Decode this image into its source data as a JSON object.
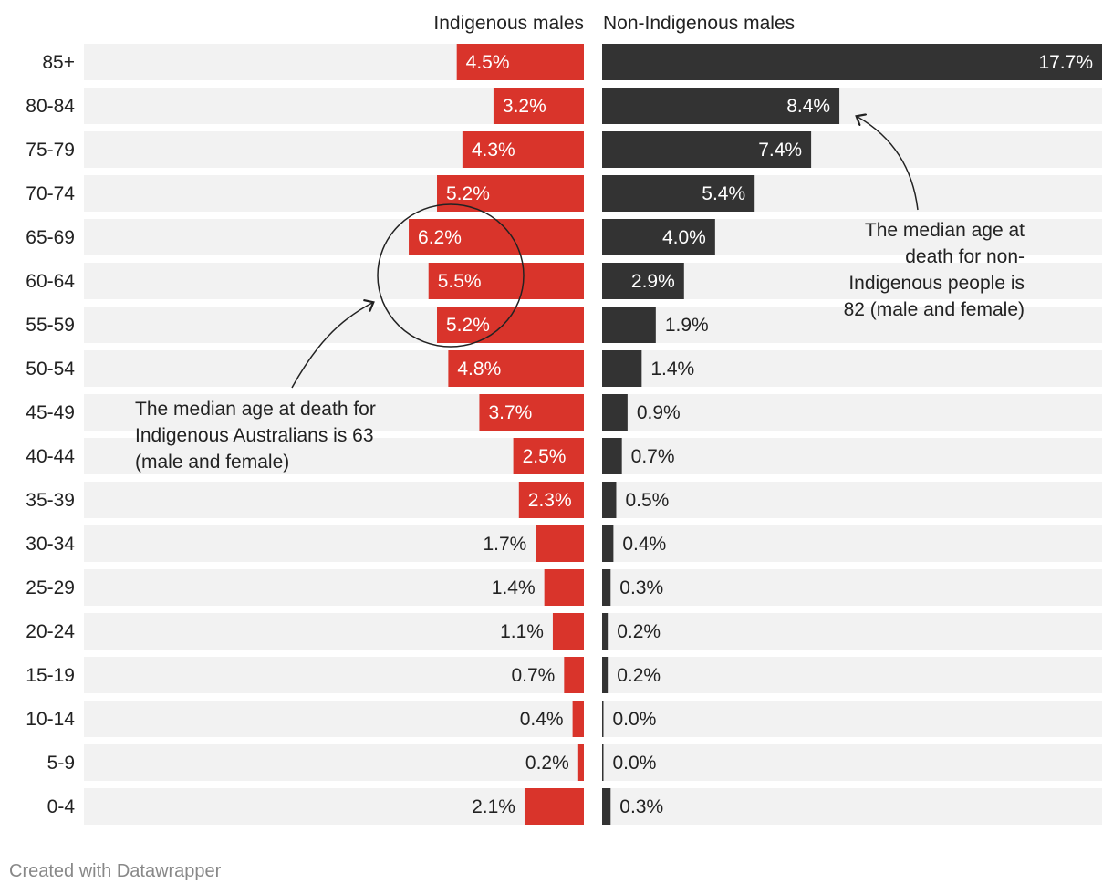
{
  "credit": "Created with Datawrapper",
  "colors": {
    "indigenous": "#d9342b",
    "non_indigenous": "#333333",
    "track": "#f2f2f2",
    "label_inside": "#ffffff",
    "label_outside": "#222222"
  },
  "chart_data": {
    "type": "bar",
    "orientation": "horizontal",
    "layout": "butterfly",
    "categories": [
      "85+",
      "80-84",
      "75-79",
      "70-74",
      "65-69",
      "60-64",
      "55-59",
      "50-54",
      "45-49",
      "40-44",
      "35-39",
      "30-34",
      "25-29",
      "20-24",
      "15-19",
      "10-14",
      "5-9",
      "0-4"
    ],
    "series": [
      {
        "name": "Indigenous males",
        "values": [
          4.5,
          3.2,
          4.3,
          5.2,
          6.2,
          5.5,
          5.2,
          4.8,
          3.7,
          2.5,
          2.3,
          1.7,
          1.4,
          1.1,
          0.7,
          0.4,
          0.2,
          2.1
        ],
        "labels": [
          "4.5%",
          "3.2%",
          "4.3%",
          "5.2%",
          "6.2%",
          "5.5%",
          "5.2%",
          "4.8%",
          "3.7%",
          "2.5%",
          "2.3%",
          "1.7%",
          "1.4%",
          "1.1%",
          "0.7%",
          "0.4%",
          "0.2%",
          "2.1%"
        ]
      },
      {
        "name": "Non-Indigenous males",
        "values": [
          17.7,
          8.4,
          7.4,
          5.4,
          4.0,
          2.9,
          1.9,
          1.4,
          0.9,
          0.7,
          0.5,
          0.4,
          0.3,
          0.2,
          0.2,
          0.0,
          0.0,
          0.3
        ],
        "labels": [
          "17.7%",
          "8.4%",
          "7.4%",
          "5.4%",
          "4.0%",
          "2.9%",
          "1.9%",
          "1.4%",
          "0.9%",
          "0.7%",
          "0.5%",
          "0.4%",
          "0.3%",
          "0.2%",
          "0.2%",
          "0.0%",
          "0.0%",
          "0.3%"
        ]
      }
    ],
    "axis_range": [
      0,
      17.7
    ],
    "grid": false,
    "legend": "column headers",
    "annotations": [
      {
        "text_lines": [
          "The median age at death for",
          "Indigenous Australians is 63",
          "(male and female)"
        ],
        "series": "Indigenous males",
        "highlight_category": "60-64"
      },
      {
        "text_lines": [
          "The median age at",
          "death for non-",
          "Indigenous people is",
          "82 (male and female)"
        ],
        "series": "Non-Indigenous males",
        "points_to_category": "80-84"
      }
    ]
  }
}
